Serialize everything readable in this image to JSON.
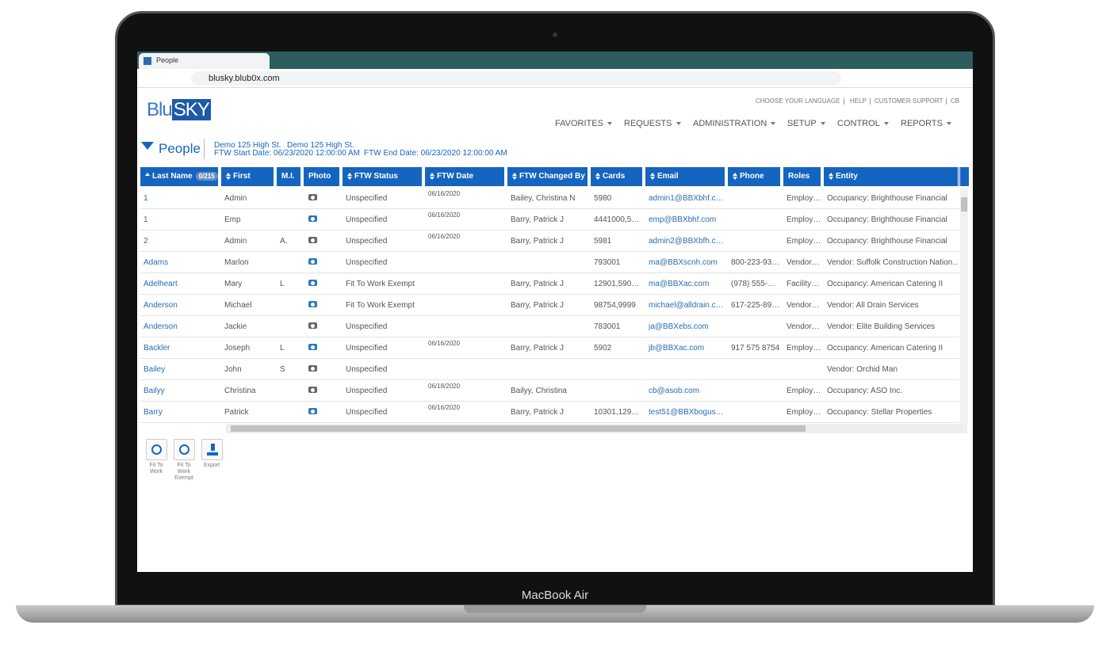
{
  "browser": {
    "tab_title": "People",
    "url": "blusky.blub0x.com"
  },
  "header": {
    "logo_blu": "Blu",
    "logo_sky": "SKY",
    "top_links": [
      "CHOOSE YOUR LANGUAGE",
      "HELP",
      "CUSTOMER SUPPORT",
      "CB"
    ],
    "nav": [
      "FAVORITES",
      "REQUESTS",
      "ADMINISTRATION",
      "SETUP",
      "CONTROL",
      "REPORTS"
    ]
  },
  "page": {
    "title": "People",
    "location_1": "Demo 125 High St.",
    "location_2": "Demo 125 High St.",
    "start_date": "FTW Start Date: 06/23/2020 12:00:00 AM",
    "end_date": "FTW End Date: 06/23/2020 12:00:00 AM"
  },
  "table": {
    "count": "0/215",
    "columns": [
      "Last Name",
      "First Name",
      "M.I.",
      "Photo",
      "FTW Status",
      "FTW Date",
      "FTW Changed By",
      "Cards",
      "Email",
      "Phone",
      "Roles",
      "Entity"
    ],
    "rows": [
      {
        "last": "1",
        "first": "Admin",
        "photo": "#666666",
        "status": "Unspecified",
        "date": "06/16/2020",
        "by": "Bailey, Christina N",
        "cards": "5980",
        "email": "admin1@BBXbhf.c…",
        "roles": "Employ…",
        "entity": "Occupancy: Brighthouse Financial"
      },
      {
        "last": "1",
        "first": "Emp",
        "photo": "#2b7bbf",
        "status": "Unspecified",
        "date": "06/16/2020",
        "by": "Barry, Patrick J",
        "cards": "4441000,5…",
        "email": "emp@BBXbhf.com",
        "roles": "Employ…",
        "entity": "Occupancy: Brighthouse Financial"
      },
      {
        "last": "2",
        "first": "Admin",
        "mi": "A.",
        "photo": "#666666",
        "status": "Unspecified",
        "date": "06/16/2020",
        "by": "Barry, Patrick J",
        "cards": "5981",
        "email": "admin2@BBXbfh.c…",
        "roles": "Employ…",
        "entity": "Occupancy: Brighthouse Financial"
      },
      {
        "last": "Adams",
        "first": "Marlon",
        "photo": "#2b7bbf",
        "status": "Unspecified",
        "cards": "793001",
        "email": "ma@BBXscnh.com",
        "phone": "800-223-93…",
        "roles": "Vendor…",
        "entity": "Vendor: Suffolk Construction Nation…"
      },
      {
        "last": "Adelheart",
        "first": "Mary",
        "mi": "L",
        "photo": "#2b7bbf",
        "status": "Fit To Work Exempt",
        "by": "Barry, Patrick J",
        "cards": "12901,590…",
        "email": "ma@BBXac.com",
        "phone": "(978) 555-…",
        "roles": "Facility…",
        "entity": "Occupancy: American Catering II"
      },
      {
        "last": "Anderson",
        "first": "Michael",
        "photo": "#2b7bbf",
        "status": "Fit To Work Exempt",
        "by": "Barry, Patrick J",
        "cards": "98754,9999",
        "email": "michael@alldrain.c…",
        "phone": "617-225-89…",
        "roles": "Vendor…",
        "entity": "Vendor: All Drain Services"
      },
      {
        "last": "Anderson",
        "first": "Jackie",
        "photo": "#666666",
        "status": "Unspecified",
        "cards": "783001",
        "email": "ja@BBXebs.com",
        "roles": "Vendor…",
        "entity": "Vendor: Elite Building Services"
      },
      {
        "last": "Backler",
        "first": "Joseph",
        "mi": "L",
        "photo": "#2b7bbf",
        "status": "Unspecified",
        "date": "06/16/2020",
        "by": "Barry, Patrick J",
        "cards": "5902",
        "email": "jb@BBXac.com",
        "phone": "917 575 8754",
        "roles": "Employ…",
        "entity": "Occupancy: American Catering II"
      },
      {
        "last": "Bailey",
        "first": "John",
        "mi": "S",
        "photo": "#666666",
        "status": "Unspecified",
        "entity": "Vendor: Orchid Man"
      },
      {
        "last": "Bailyy",
        "first": "Christina",
        "photo": "#666666",
        "status": "Unspecified",
        "date": "06/18/2020",
        "by": "Bailyy, Christina",
        "email": "cb@asob.com",
        "roles": "Employ…",
        "entity": "Occupancy: ASO Inc."
      },
      {
        "last": "Barry",
        "first": "Patrick",
        "photo": "#2b7bbf",
        "status": "Unspecified",
        "date": "06/16/2020",
        "by": "Barry, Patrick J",
        "cards": "10301,129…",
        "email": "test51@BBXbogus…",
        "roles": "Employ…",
        "entity": "Occupancy: Stellar Properties"
      }
    ]
  },
  "actions": [
    "Fit To Work",
    "Fit To Work Exempt",
    "Export"
  ],
  "device": {
    "label": "MacBook Air"
  }
}
